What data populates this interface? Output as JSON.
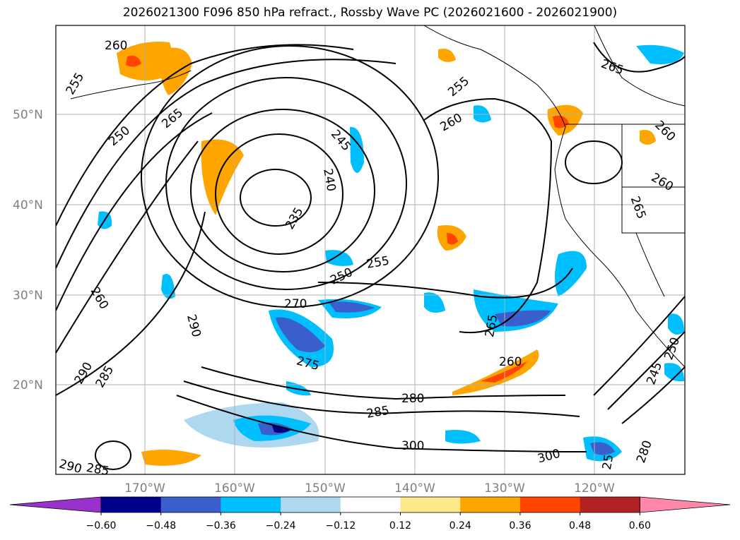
{
  "title": "2026021300 F096 850 hPa refract., Rossby Wave PC (2026021600 - 2026021900)",
  "map": {
    "lat_labels": [
      "50°N",
      "40°N",
      "30°N",
      "20°N"
    ],
    "lon_labels": [
      "170°W",
      "160°W",
      "150°W",
      "140°W",
      "130°W",
      "120°W"
    ],
    "contour_labels": [
      "260",
      "255",
      "250",
      "265",
      "245",
      "240",
      "235",
      "260",
      "255",
      "250",
      "255",
      "270",
      "260",
      "290",
      "275",
      "265",
      "260",
      "280",
      "285",
      "290",
      "285",
      "300",
      "300",
      "290",
      "285",
      "265",
      "260",
      "260",
      "265",
      "25",
      "280",
      "245",
      "250"
    ]
  },
  "colorbar": {
    "ticks": [
      "−0.60",
      "−0.48",
      "−0.36",
      "−0.24",
      "−0.12",
      "0.12",
      "0.24",
      "0.36",
      "0.48",
      "0.60"
    ],
    "colors": [
      "#9932cc",
      "#00008b",
      "#3a5fcd",
      "#00bfff",
      "#add8f0",
      "#ffffff",
      "#ffe88a",
      "#ffa500",
      "#ff4500",
      "#b22222",
      "#ff88aa"
    ]
  },
  "chart_data": {
    "type": "contour-map",
    "field": "850 hPa refractivity",
    "shading": "Rossby Wave PC",
    "levels": [
      -0.6,
      -0.48,
      -0.36,
      -0.24,
      -0.12,
      0.12,
      0.24,
      0.36,
      0.48,
      0.6
    ],
    "lat_ticks": [
      50,
      40,
      30,
      20
    ],
    "lon_ticks": [
      -170,
      -160,
      -150,
      -140,
      -130,
      -120
    ]
  }
}
